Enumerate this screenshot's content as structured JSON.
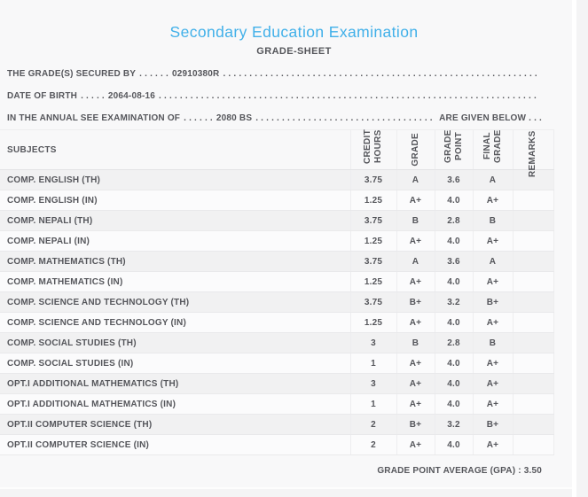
{
  "header": {
    "title": "Secondary Education Examination",
    "subtitle": "GRADE-SHEET"
  },
  "info": {
    "lines": [
      {
        "label": "THE GRADE(S) SECURED BY",
        "dots": ". . . . . .",
        "value": "02910380R",
        "fill": ". . . . . . . . . . . . . . . . . . . . . . . . . . . . . . . . . . . . . . . . . . . . . . . . . . . . . . . . . . . . . . . . . . . . . . . . . . . . . . . . . . . . . . . . . . . .",
        "suffix": ""
      },
      {
        "label": "DATE OF BIRTH",
        "dots": ". . . . .",
        "value": "2064-08-16",
        "fill": ". . . . . . . . . . . . . . . . . . . . . . . . . . . . . . . . . . . . . . . . . . . . . . . . . . . . . . . . . . . . . . . . . . . . . . . . . . . . . . . . . . . . . . . . . . . .",
        "suffix": ""
      },
      {
        "label": "IN THE ANNUAL SEE EXAMINATION OF",
        "dots": ". . . . . .",
        "value": "2080 BS",
        "fill": ". . . . . . . . . . . . . . . . . . . . . . . . . . . . . . . . . . . . . . . . . . . . . . . . . . . . . . . . . . . . . . . . . . . . . . . . . . . . . . . . . . . . . . . . . . . .",
        "suffix": "ARE GIVEN BELOW . . ."
      }
    ]
  },
  "table": {
    "headers": {
      "subjects": "SUBJECTS",
      "credit_hours": "CREDIT HOURS",
      "grade": "GRADE",
      "grade_point": "GRADE POINT",
      "final_grade": "FINAL GRADE",
      "remarks": "REMARKS"
    },
    "rows": [
      {
        "subject": "COMP. ENGLISH (TH)",
        "credit_hours": "3.75",
        "grade": "A",
        "grade_point": "3.6",
        "final_grade": "A",
        "remarks": ""
      },
      {
        "subject": "COMP. ENGLISH (IN)",
        "credit_hours": "1.25",
        "grade": "A+",
        "grade_point": "4.0",
        "final_grade": "A+",
        "remarks": ""
      },
      {
        "subject": "COMP. NEPALI (TH)",
        "credit_hours": "3.75",
        "grade": "B",
        "grade_point": "2.8",
        "final_grade": "B",
        "remarks": ""
      },
      {
        "subject": "COMP. NEPALI (IN)",
        "credit_hours": "1.25",
        "grade": "A+",
        "grade_point": "4.0",
        "final_grade": "A+",
        "remarks": ""
      },
      {
        "subject": "COMP. MATHEMATICS (TH)",
        "credit_hours": "3.75",
        "grade": "A",
        "grade_point": "3.6",
        "final_grade": "A",
        "remarks": ""
      },
      {
        "subject": "COMP. MATHEMATICS (IN)",
        "credit_hours": "1.25",
        "grade": "A+",
        "grade_point": "4.0",
        "final_grade": "A+",
        "remarks": ""
      },
      {
        "subject": "COMP. SCIENCE AND TECHNOLOGY (TH)",
        "credit_hours": "3.75",
        "grade": "B+",
        "grade_point": "3.2",
        "final_grade": "B+",
        "remarks": ""
      },
      {
        "subject": "COMP. SCIENCE AND TECHNOLOGY (IN)",
        "credit_hours": "1.25",
        "grade": "A+",
        "grade_point": "4.0",
        "final_grade": "A+",
        "remarks": ""
      },
      {
        "subject": "COMP. SOCIAL STUDIES (TH)",
        "credit_hours": "3",
        "grade": "B",
        "grade_point": "2.8",
        "final_grade": "B",
        "remarks": ""
      },
      {
        "subject": "COMP. SOCIAL STUDIES (IN)",
        "credit_hours": "1",
        "grade": "A+",
        "grade_point": "4.0",
        "final_grade": "A+",
        "remarks": ""
      },
      {
        "subject": "OPT.I ADDITIONAL MATHEMATICS (TH)",
        "credit_hours": "3",
        "grade": "A+",
        "grade_point": "4.0",
        "final_grade": "A+",
        "remarks": ""
      },
      {
        "subject": "OPT.I ADDITIONAL MATHEMATICS (IN)",
        "credit_hours": "1",
        "grade": "A+",
        "grade_point": "4.0",
        "final_grade": "A+",
        "remarks": ""
      },
      {
        "subject": "OPT.II COMPUTER SCIENCE (TH)",
        "credit_hours": "2",
        "grade": "B+",
        "grade_point": "3.2",
        "final_grade": "B+",
        "remarks": ""
      },
      {
        "subject": "OPT.II COMPUTER SCIENCE (IN)",
        "credit_hours": "2",
        "grade": "A+",
        "grade_point": "4.0",
        "final_grade": "A+",
        "remarks": ""
      }
    ]
  },
  "footer": {
    "gpa": "GRADE POINT AVERAGE (GPA) : 3.50"
  },
  "colors": {
    "accent": "#41b0e9",
    "text": "#55565b"
  }
}
